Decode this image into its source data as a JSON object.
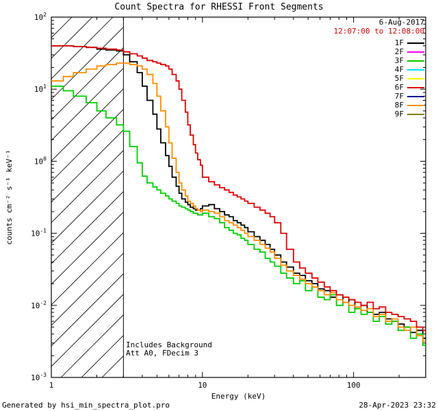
{
  "title": "Count Spectra for RHESSI Front Segments",
  "header": {
    "date": "6-Aug-2017",
    "time_range": "12:07:00 to 12:08:00"
  },
  "legend": {
    "items": [
      {
        "label": "1F",
        "color": "#000000"
      },
      {
        "label": "2F",
        "color": "#ff00ff"
      },
      {
        "label": "3F",
        "color": "#00cc00"
      },
      {
        "label": "4F",
        "color": "#00e5ff"
      },
      {
        "label": "5F",
        "color": "#ffff00"
      },
      {
        "label": "6F",
        "color": "#dd0000"
      },
      {
        "label": "7F",
        "color": "#000090"
      },
      {
        "label": "8F",
        "color": "#ff8c00"
      },
      {
        "label": "9F",
        "color": "#808000"
      }
    ]
  },
  "annotations": {
    "line1": "Includes Background",
    "line2": "Att A0, FDecim 3"
  },
  "footer": {
    "left": "Generated by hsi_min_spectra_plot.pro",
    "right": "28-Apr-2023 23:32"
  },
  "chart_data": {
    "type": "line",
    "title": "Count Spectra for RHESSI Front Segments",
    "xlabel": "Energy (keV)",
    "ylabel": "counts cm⁻² s⁻¹ keV⁻¹",
    "x_scale": "log",
    "y_scale": "log",
    "xlim": [
      1,
      300
    ],
    "ylim": [
      0.001,
      100
    ],
    "x_ticks": [
      1,
      10,
      100
    ],
    "y_tick_exponents": [
      2,
      1,
      0,
      -1,
      -2,
      -3
    ],
    "hatch_region_kev": [
      1,
      3
    ],
    "step_mode": true,
    "energy_bin_edges_kev": [
      1.0,
      1.2,
      1.4,
      1.7,
      2.0,
      2.3,
      2.7,
      3.0,
      3.3,
      3.7,
      4.0,
      4.3,
      4.7,
      5.0,
      5.3,
      5.7,
      6.0,
      6.3,
      6.7,
      7.0,
      7.3,
      7.7,
      8.0,
      8.3,
      8.7,
      9.0,
      9.3,
      9.7,
      10,
      11,
      12,
      13,
      14,
      15,
      16,
      17,
      18,
      19,
      20,
      22,
      24,
      26,
      28,
      30,
      33,
      36,
      40,
      44,
      48,
      53,
      58,
      64,
      70,
      77,
      85,
      93,
      102,
      112,
      123,
      135,
      148,
      163,
      179,
      197,
      216,
      238,
      261,
      287,
      300
    ],
    "series": [
      {
        "name": "1F",
        "color": "#000000",
        "values": [
          40,
          40,
          39,
          38,
          36,
          35,
          34,
          30,
          24,
          17,
          11,
          7.0,
          4.5,
          2.8,
          1.8,
          1.2,
          0.85,
          0.6,
          0.45,
          0.36,
          0.3,
          0.27,
          0.25,
          0.23,
          0.22,
          0.21,
          0.21,
          0.22,
          0.24,
          0.25,
          0.22,
          0.2,
          0.18,
          0.17,
          0.15,
          0.14,
          0.13,
          0.12,
          0.105,
          0.09,
          0.08,
          0.07,
          0.06,
          0.05,
          0.04,
          0.034,
          0.028,
          0.026,
          0.022,
          0.02,
          0.017,
          0.016,
          0.013,
          0.014,
          0.011,
          0.012,
          0.009,
          0.01,
          0.008,
          0.0075,
          0.008,
          0.0065,
          0.006,
          0.0055,
          0.005,
          0.0042,
          0.0045,
          0.0035
        ]
      },
      {
        "name": "3F",
        "color": "#00cc00",
        "values": [
          11,
          9.5,
          8.0,
          6.5,
          5.0,
          4.0,
          3.2,
          2.6,
          1.6,
          0.95,
          0.62,
          0.5,
          0.44,
          0.4,
          0.36,
          0.33,
          0.3,
          0.28,
          0.26,
          0.24,
          0.23,
          0.22,
          0.21,
          0.2,
          0.19,
          0.19,
          0.18,
          0.18,
          0.19,
          0.17,
          0.16,
          0.14,
          0.12,
          0.11,
          0.1,
          0.095,
          0.085,
          0.08,
          0.07,
          0.06,
          0.055,
          0.045,
          0.04,
          0.035,
          0.028,
          0.024,
          0.02,
          0.022,
          0.016,
          0.018,
          0.013,
          0.012,
          0.014,
          0.01,
          0.011,
          0.008,
          0.009,
          0.0075,
          0.008,
          0.006,
          0.007,
          0.0055,
          0.006,
          0.0045,
          0.005,
          0.0035,
          0.004,
          0.0028
        ]
      },
      {
        "name": "8F",
        "color": "#ff8c00",
        "values": [
          13,
          15,
          17,
          19,
          21,
          22,
          23,
          23,
          22,
          21,
          19,
          16,
          12,
          8.0,
          5.0,
          3.0,
          1.8,
          1.1,
          0.7,
          0.5,
          0.4,
          0.33,
          0.28,
          0.26,
          0.24,
          0.22,
          0.21,
          0.2,
          0.21,
          0.2,
          0.19,
          0.17,
          0.15,
          0.14,
          0.13,
          0.12,
          0.11,
          0.1,
          0.09,
          0.08,
          0.07,
          0.062,
          0.055,
          0.045,
          0.036,
          0.03,
          0.026,
          0.023,
          0.02,
          0.018,
          0.016,
          0.014,
          0.015,
          0.012,
          0.011,
          0.01,
          0.0095,
          0.0085,
          0.009,
          0.007,
          0.0075,
          0.006,
          0.0065,
          0.005,
          0.0045,
          0.005,
          0.0038,
          0.0032
        ]
      },
      {
        "name": "6F",
        "color": "#dd0000",
        "values": [
          40,
          40,
          39,
          38,
          37,
          36,
          35,
          33,
          31,
          29,
          27,
          25,
          24,
          23,
          22,
          21,
          19,
          16,
          13,
          10,
          7.0,
          4.8,
          3.2,
          2.3,
          1.7,
          1.3,
          1.05,
          0.88,
          0.6,
          0.52,
          0.47,
          0.43,
          0.4,
          0.37,
          0.34,
          0.32,
          0.3,
          0.28,
          0.26,
          0.23,
          0.21,
          0.19,
          0.17,
          0.14,
          0.1,
          0.06,
          0.04,
          0.033,
          0.028,
          0.024,
          0.021,
          0.018,
          0.016,
          0.014,
          0.013,
          0.012,
          0.011,
          0.01,
          0.011,
          0.009,
          0.0095,
          0.008,
          0.0075,
          0.007,
          0.0065,
          0.006,
          0.005,
          0.0045
        ]
      }
    ]
  }
}
